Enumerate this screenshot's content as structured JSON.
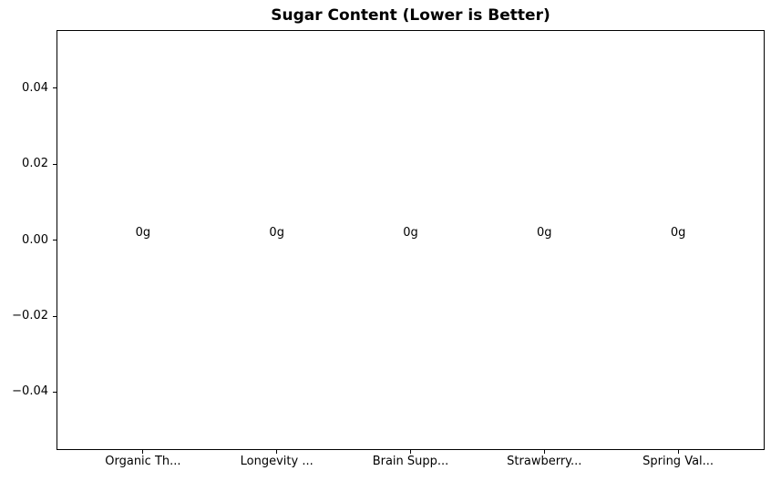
{
  "chart_data": {
    "type": "bar",
    "title": "Sugar Content (Lower is Better)",
    "xlabel": "",
    "ylabel": "",
    "categories": [
      "Organic Th...",
      "Longevity ...",
      "Brain Supp...",
      "Strawberry...",
      "Spring Val..."
    ],
    "values": [
      0,
      0,
      0,
      0,
      0
    ],
    "bar_labels": [
      "0g",
      "0g",
      "0g",
      "0g",
      "0g"
    ],
    "yticks": [
      {
        "value": 0.04,
        "label": "0.04"
      },
      {
        "value": 0.02,
        "label": "0.02"
      },
      {
        "value": 0.0,
        "label": "0.00"
      },
      {
        "value": -0.02,
        "label": "−0.02"
      },
      {
        "value": -0.04,
        "label": "−0.04"
      }
    ],
    "ylim": [
      -0.055,
      0.055
    ],
    "xlim": [
      -0.64,
      4.64
    ],
    "grid": false,
    "legend": false,
    "colors": {
      "text": "#000000",
      "spine": "#000000",
      "background": "#ffffff",
      "bar": "#1f77b4"
    }
  }
}
